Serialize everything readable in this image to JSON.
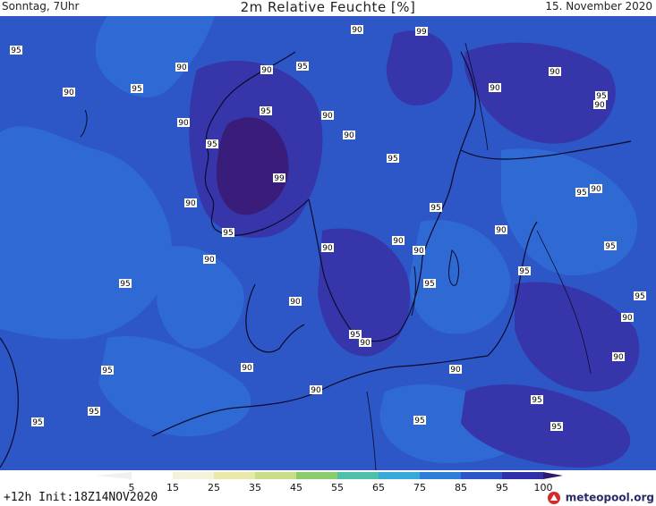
{
  "header": {
    "left": "Sonntag, 7Uhr",
    "center": "2m Relative Feuchte [%]",
    "right": "15. November 2020"
  },
  "footer": {
    "run_info": "+12h Init:18Z14NOV2020",
    "brand": "meteopool.org"
  },
  "legend": {
    "ticks": [
      "5",
      "15",
      "25",
      "35",
      "45",
      "55",
      "65",
      "75",
      "85",
      "95",
      "100"
    ],
    "colors": [
      "#ffffff",
      "#f5f2dc",
      "#e8e8a8",
      "#c8de88",
      "#8ccc6c",
      "#4cc0a8",
      "#38a8d8",
      "#2c7ed8",
      "#2c56c8",
      "#3030a8",
      "#30186c"
    ]
  },
  "map": {
    "value_labels": [
      "95",
      "90",
      "95",
      "90",
      "90",
      "95",
      "90",
      "99",
      "95",
      "90",
      "95",
      "90",
      "95",
      "99",
      "90",
      "95",
      "95",
      "90",
      "90",
      "90",
      "95",
      "90",
      "95",
      "90",
      "95",
      "90",
      "90",
      "90",
      "90",
      "95",
      "95",
      "90",
      "95",
      "95",
      "95",
      "95",
      "90",
      "90",
      "90",
      "95",
      "90",
      "95",
      "90",
      "95",
      "90",
      "95",
      "90",
      "95"
    ]
  }
}
